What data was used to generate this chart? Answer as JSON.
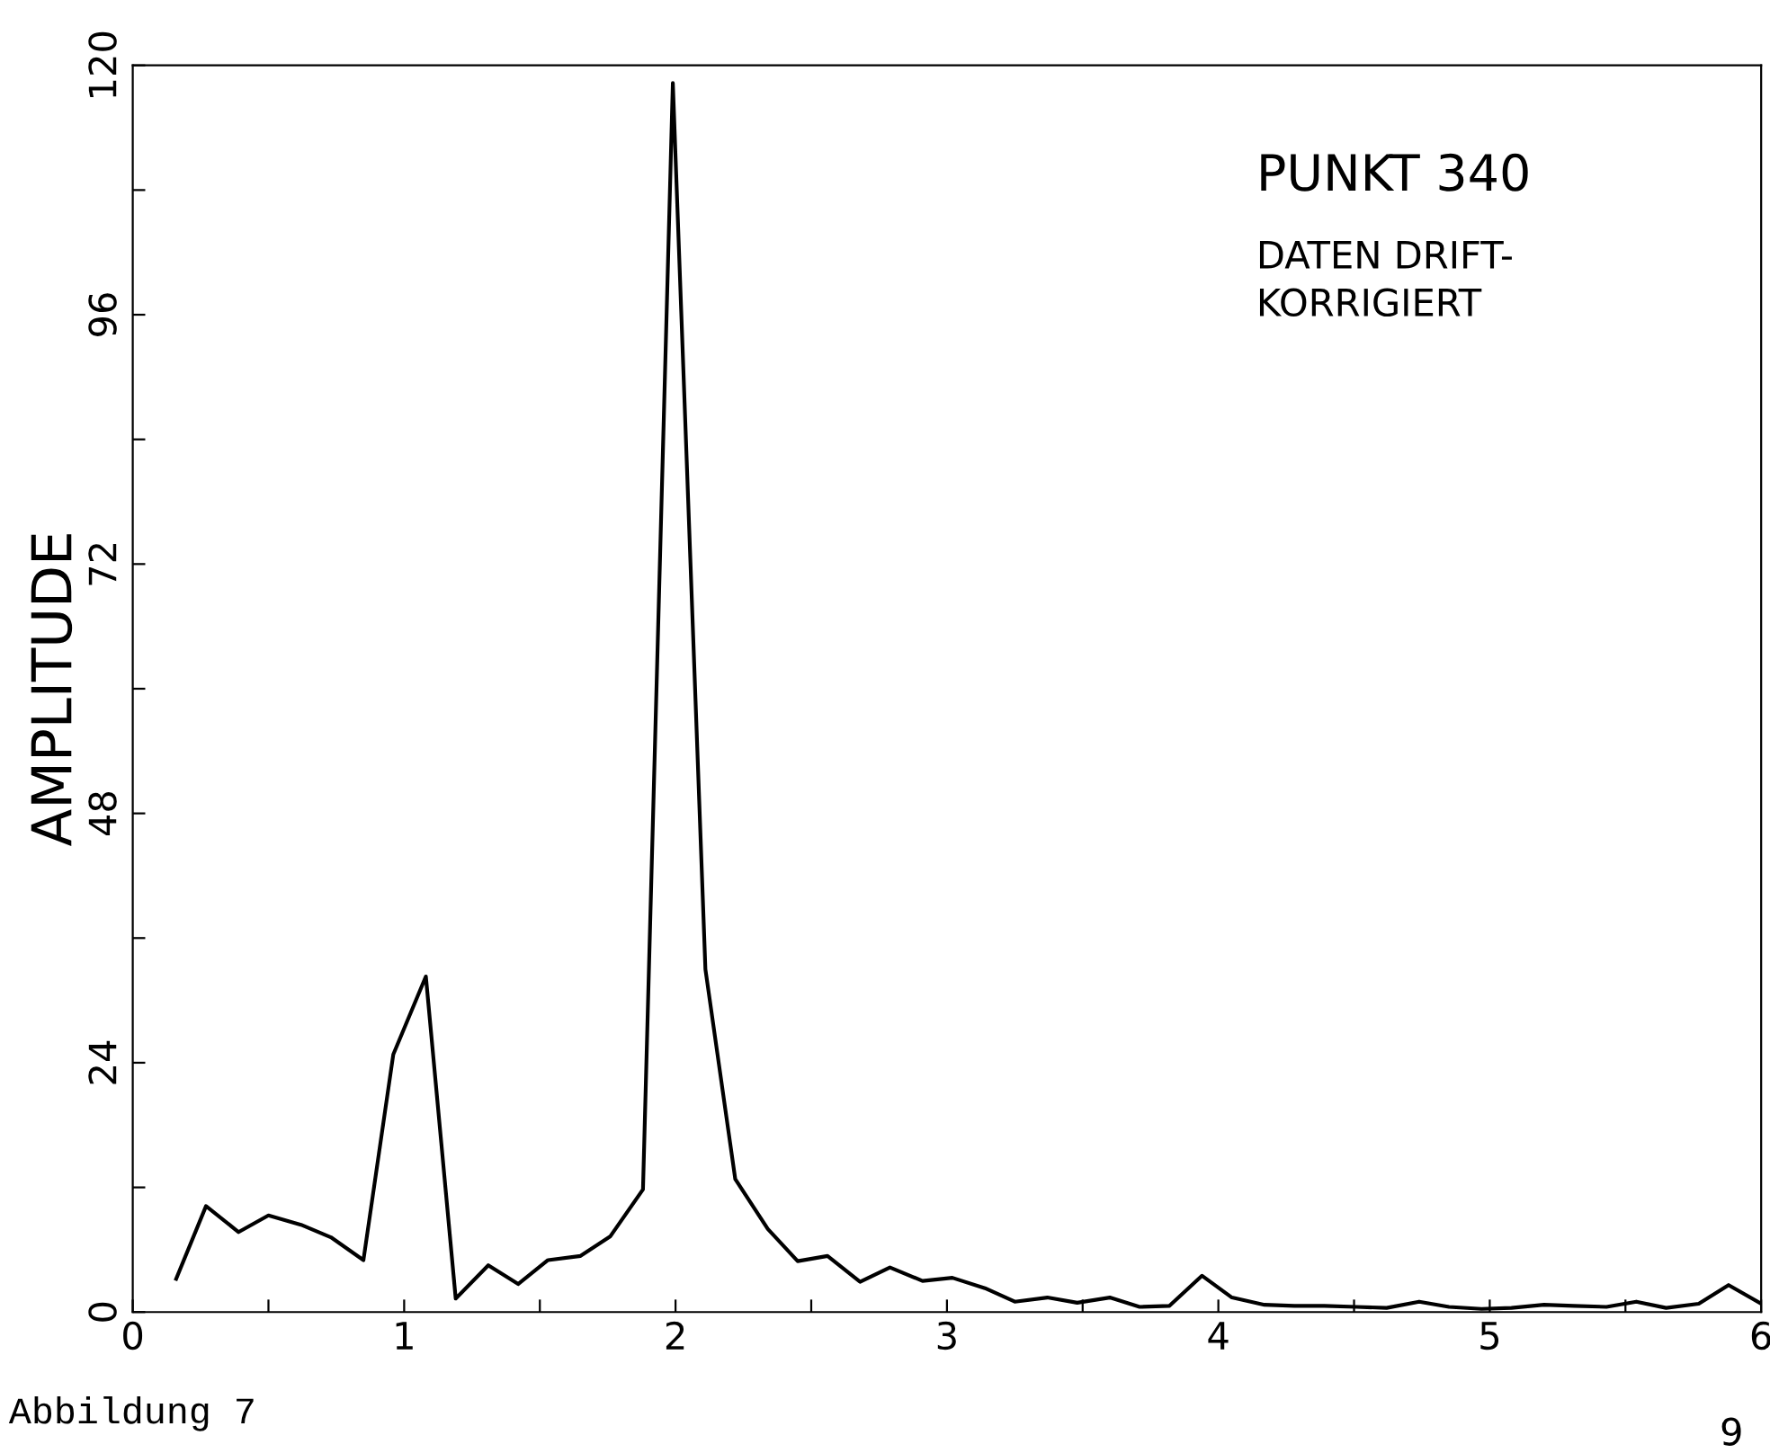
{
  "chart_data": {
    "type": "line",
    "title": "PUNKT 340",
    "subtitle": "DATEN DRIFT-\nKORRIGIERT",
    "ylabel": "AMPLITUDE",
    "annotations": [
      "Abbildung 7",
      "9"
    ],
    "x": [
      0.16,
      0.27,
      0.39,
      0.5,
      0.62,
      0.73,
      0.85,
      0.96,
      1.08,
      1.19,
      1.31,
      1.42,
      1.53,
      1.65,
      1.76,
      1.88,
      1.99,
      2.11,
      2.22,
      2.34,
      2.45,
      2.56,
      2.68,
      2.79,
      2.91,
      3.02,
      3.14,
      3.25,
      3.37,
      3.48,
      3.6,
      3.71,
      3.82,
      3.94,
      4.05,
      4.17,
      4.28,
      4.39,
      4.51,
      4.62,
      4.74,
      4.85,
      4.97,
      5.08,
      5.2,
      5.31,
      5.43,
      5.54,
      5.65,
      5.77,
      5.88,
      6.0
    ],
    "series": [
      {
        "color": "#000000",
        "values": [
          3.2,
          10.2,
          7.7,
          9.3,
          8.4,
          7.2,
          5.0,
          24.8,
          32.3,
          1.3,
          4.5,
          2.7,
          5.0,
          5.4,
          7.3,
          11.8,
          118.3,
          33,
          12.8,
          8.0,
          4.9,
          5.4,
          2.9,
          4.3,
          3.0,
          3.3,
          2.3,
          1.0,
          1.4,
          0.9,
          1.4,
          0.5,
          0.6,
          3.5,
          1.4,
          0.7,
          0.6,
          0.6,
          0.5,
          0.4,
          1.0,
          0.5,
          0.3,
          0.4,
          0.7,
          0.6,
          0.5,
          1.0,
          0.4,
          0.8,
          2.6,
          0.8
        ]
      }
    ],
    "xlim": [
      0,
      6
    ],
    "ylim": [
      0,
      120
    ],
    "xticks": [
      0,
      {
        "value": 0.5,
        "label": null
      },
      1,
      {
        "value": 1.5,
        "label": null
      },
      2,
      {
        "value": 2.5,
        "label": null
      },
      3,
      {
        "value": 3.5,
        "label": null
      },
      4,
      {
        "value": 4.5,
        "label": null
      },
      5,
      {
        "value": 5.5,
        "label": null
      },
      6
    ],
    "yticks": [
      0,
      {
        "value": 12,
        "label": null
      },
      24,
      {
        "value": 36,
        "label": null
      },
      48,
      {
        "value": 60,
        "label": null
      },
      72,
      {
        "value": 84,
        "label": null
      },
      96,
      {
        "value": 108,
        "label": null
      },
      120
    ],
    "grid": false,
    "legend": false,
    "marker": "none",
    "line_style": "solid"
  }
}
